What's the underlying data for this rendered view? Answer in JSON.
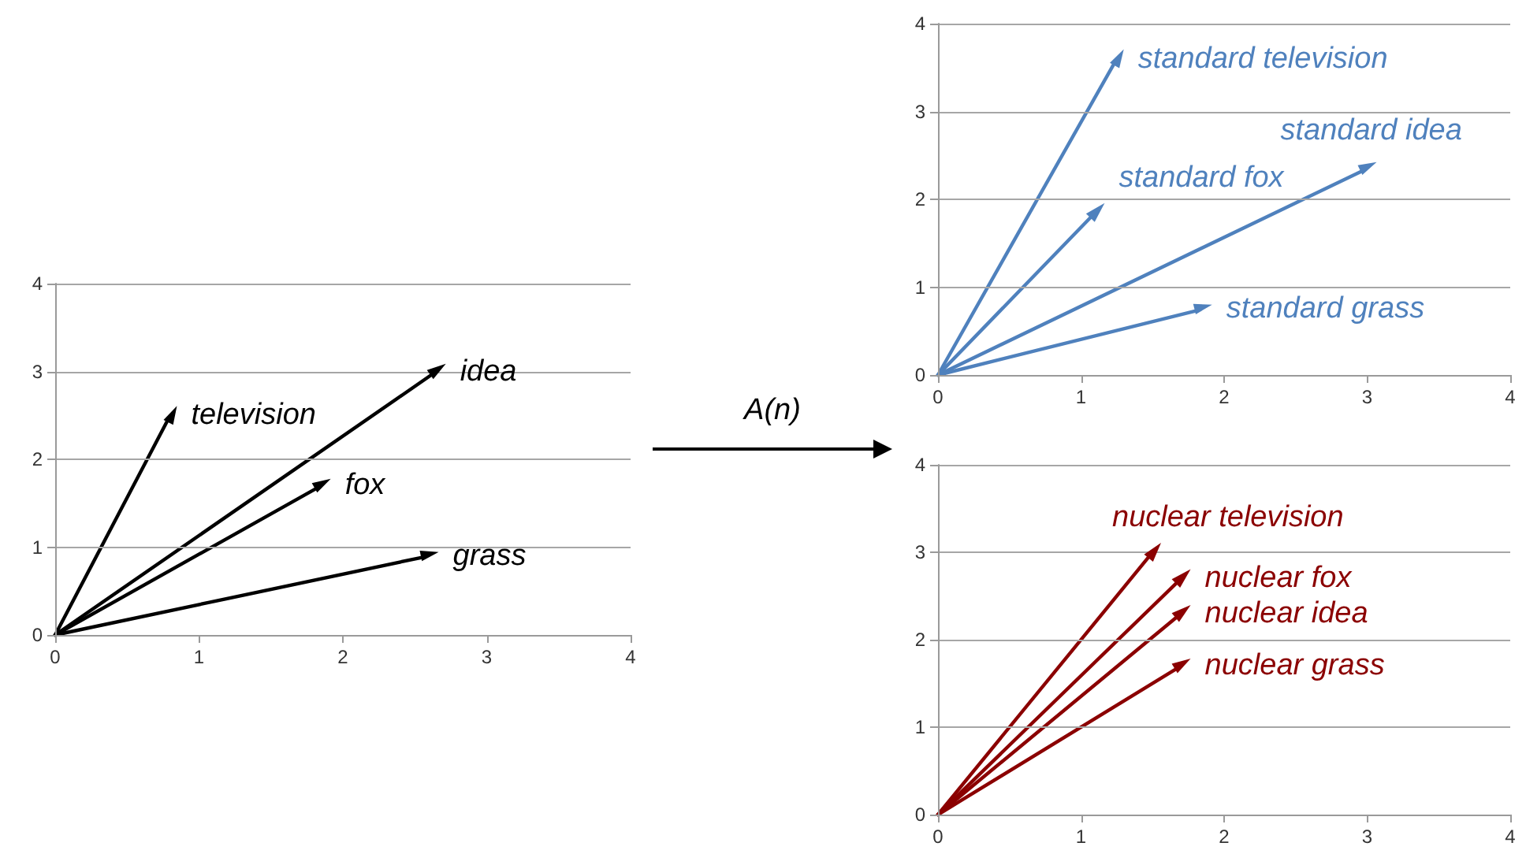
{
  "chart_data": [
    {
      "type": "scatter",
      "xlim": [
        0,
        4
      ],
      "ylim": [
        0,
        4
      ],
      "xticks": [
        0,
        1,
        2,
        3,
        4
      ],
      "yticks": [
        0,
        1,
        2,
        3,
        4
      ],
      "grid": "y",
      "marker": "triangle",
      "annotations": [
        "A(n)"
      ],
      "series": [
        {
          "name": "television",
          "color": "#000000",
          "x": [
            0.8
          ],
          "values": [
            2.5
          ]
        },
        {
          "name": "idea",
          "color": "#000000",
          "x": [
            2.65
          ],
          "values": [
            3.0
          ]
        },
        {
          "name": "fox",
          "color": "#000000",
          "x": [
            1.85
          ],
          "values": [
            1.7
          ]
        },
        {
          "name": "grass",
          "color": "#000000",
          "x": [
            2.6
          ],
          "values": [
            0.9
          ]
        }
      ]
    },
    {
      "type": "scatter",
      "xlim": [
        0,
        4
      ],
      "ylim": [
        0,
        4
      ],
      "xticks": [
        0,
        1,
        2,
        3,
        4
      ],
      "yticks": [
        0,
        1,
        2,
        3,
        4
      ],
      "grid": "y",
      "marker": "triangle",
      "series": [
        {
          "name": "standard television",
          "color": "#4f81bd",
          "x": [
            1.25
          ],
          "values": [
            3.6
          ]
        },
        {
          "name": "standard fox",
          "color": "#4f81bd",
          "x": [
            1.1
          ],
          "values": [
            1.85
          ]
        },
        {
          "name": "standard idea",
          "color": "#4f81bd",
          "x": [
            3.0
          ],
          "values": [
            2.35
          ]
        },
        {
          "name": "standard grass",
          "color": "#4f81bd",
          "x": [
            1.85
          ],
          "values": [
            0.75
          ]
        }
      ]
    },
    {
      "type": "scatter",
      "xlim": [
        0,
        4
      ],
      "ylim": [
        0,
        4
      ],
      "xticks": [
        0,
        1,
        2,
        3,
        4
      ],
      "yticks": [
        0,
        1,
        2,
        3,
        4
      ],
      "grid": "y",
      "marker": "triangle",
      "series": [
        {
          "name": "nuclear television",
          "color": "#8b0000",
          "x": [
            1.5
          ],
          "values": [
            3.0
          ]
        },
        {
          "name": "nuclear fox",
          "color": "#8b0000",
          "x": [
            1.7
          ],
          "values": [
            2.7
          ]
        },
        {
          "name": "nuclear idea",
          "color": "#8b0000",
          "x": [
            1.7
          ],
          "values": [
            2.3
          ]
        },
        {
          "name": "nuclear grass",
          "color": "#8b0000",
          "x": [
            1.7
          ],
          "values": [
            1.7
          ]
        }
      ]
    }
  ]
}
